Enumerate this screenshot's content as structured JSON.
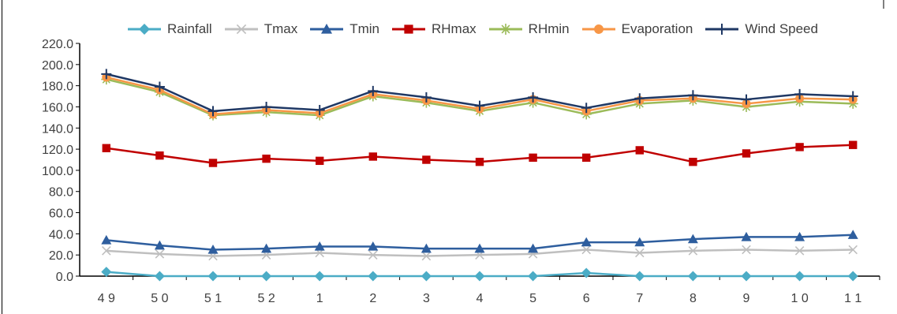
{
  "chart_data": {
    "type": "line",
    "categories": [
      "4 9",
      "5 0",
      "5 1",
      "5 2",
      "1",
      "2",
      "3",
      "4",
      "5",
      "6",
      "7",
      "8",
      "9",
      "1 0",
      "1 1"
    ],
    "ylim": [
      0,
      220
    ],
    "yticks": [
      "0.0",
      "20.0",
      "40.0",
      "60.0",
      "80.0",
      "100.0",
      "120.0",
      "140.0",
      "160.0",
      "180.0",
      "200.0",
      "220.0"
    ],
    "legend_position": "top",
    "grid": false,
    "series": [
      {
        "name": "Rainfall",
        "color": "#4BACC6",
        "marker": "diamond",
        "values": [
          4.0,
          0.0,
          0.0,
          0.0,
          0.0,
          0.0,
          0.0,
          0.0,
          0.0,
          3.0,
          0.0,
          0.0,
          0.0,
          0.0,
          0.0
        ]
      },
      {
        "name": "Tmax",
        "color": "#BFBFBF",
        "marker": "x",
        "values": [
          24.0,
          21.0,
          19.0,
          20.0,
          22.0,
          20.0,
          19.0,
          20.0,
          21.0,
          25.0,
          22.0,
          24.0,
          25.0,
          24.0,
          25.0
        ]
      },
      {
        "name": "Tmin",
        "color": "#2E5E9E",
        "marker": "triangle",
        "values": [
          34.0,
          29.0,
          25.0,
          26.0,
          28.0,
          28.0,
          26.0,
          26.0,
          26.0,
          32.0,
          32.0,
          35.0,
          37.0,
          37.0,
          39.0
        ]
      },
      {
        "name": "RHmax",
        "color": "#C00000",
        "marker": "square",
        "values": [
          121.0,
          114.0,
          107.0,
          111.0,
          109.0,
          113.0,
          110.0,
          108.0,
          112.0,
          112.0,
          119.0,
          108.0,
          116.0,
          122.0,
          124.0
        ]
      },
      {
        "name": "RHmin",
        "color": "#9BBB59",
        "marker": "star",
        "values": [
          186.0,
          174.0,
          152.0,
          155.0,
          152.0,
          170.0,
          164.0,
          156.0,
          164.0,
          153.0,
          163.0,
          166.0,
          160.0,
          165.0,
          163.0
        ]
      },
      {
        "name": "Evaporation",
        "color": "#F79646",
        "marker": "circle",
        "values": [
          188.0,
          176.0,
          153.0,
          157.0,
          154.0,
          172.0,
          166.0,
          158.0,
          167.0,
          156.0,
          166.0,
          168.0,
          163.0,
          168.0,
          167.0
        ]
      },
      {
        "name": "Wind Speed",
        "color": "#1F3864",
        "marker": "plus",
        "values": [
          191.0,
          179.0,
          156.0,
          160.0,
          157.0,
          175.0,
          169.0,
          161.0,
          169.0,
          159.0,
          168.0,
          171.0,
          167.0,
          172.0,
          170.0
        ]
      }
    ]
  }
}
